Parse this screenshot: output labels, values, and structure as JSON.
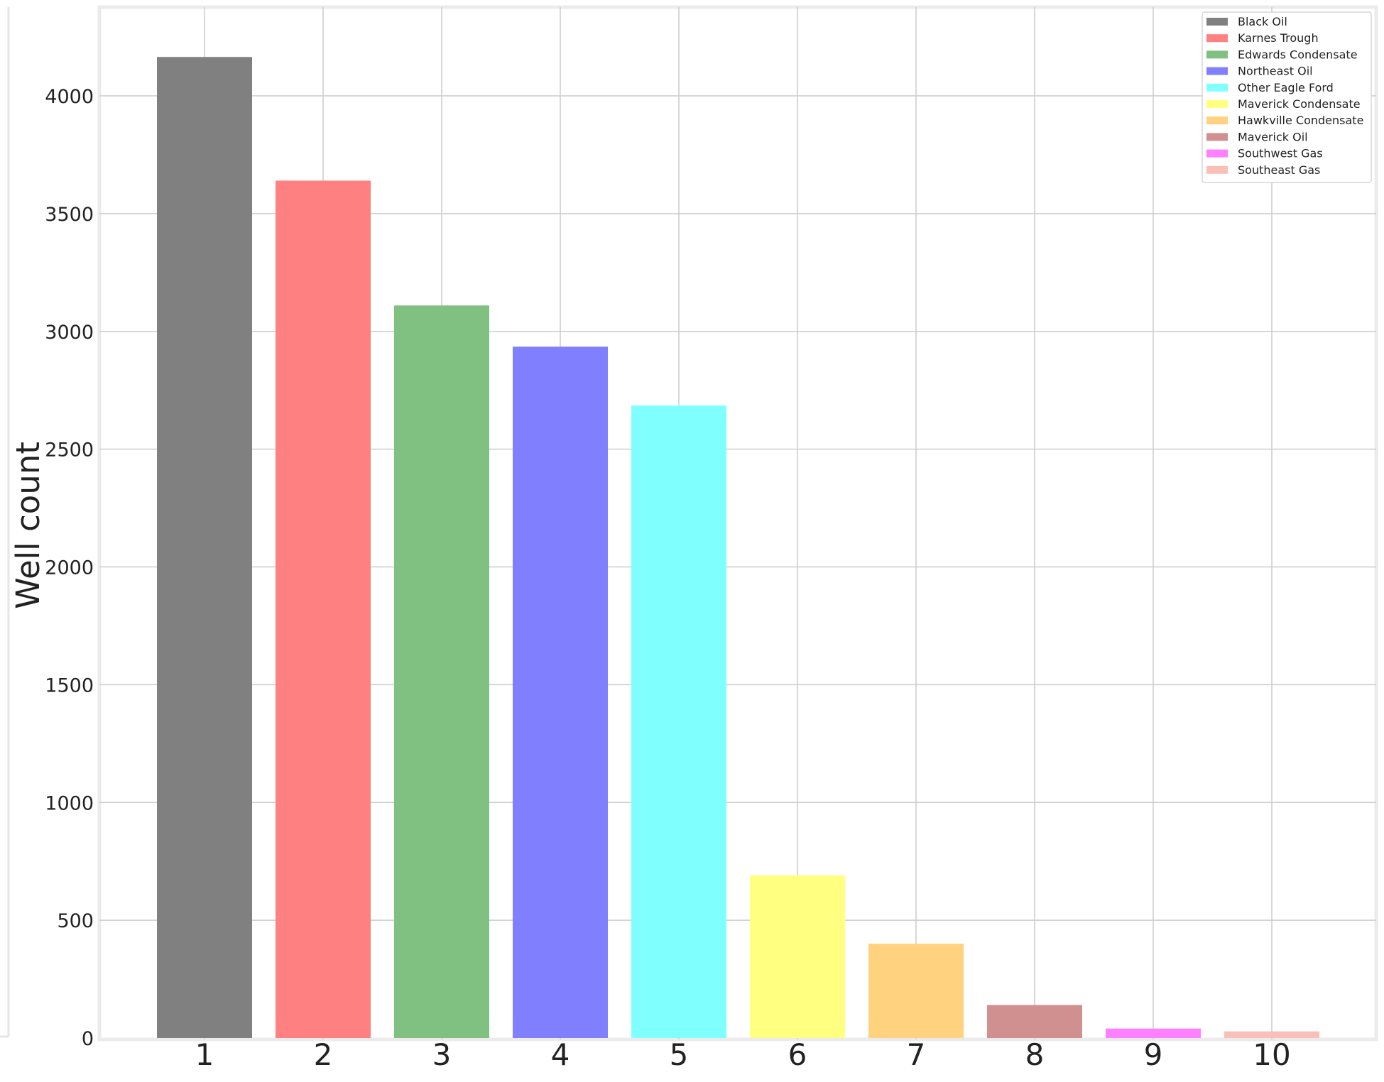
{
  "chart_data": {
    "type": "bar",
    "title": "",
    "xlabel": "",
    "ylabel": "Well count",
    "ylim": [
      0,
      4400
    ],
    "yticks": [
      0,
      500,
      1000,
      1500,
      2000,
      2500,
      3000,
      3500,
      4000
    ],
    "grid": true,
    "legend_position": "top-right",
    "categories": [
      "1",
      "2",
      "3",
      "4",
      "5",
      "6",
      "7",
      "8",
      "9",
      "10"
    ],
    "series": [
      {
        "name": "Black Oil",
        "category": "1",
        "value": 4165,
        "color": "#808080"
      },
      {
        "name": "Karnes Trough",
        "category": "2",
        "value": 3640,
        "color": "#ff8080"
      },
      {
        "name": "Edwards Condensate",
        "category": "3",
        "value": 3110,
        "color": "#80c080"
      },
      {
        "name": "Northeast Oil",
        "category": "4",
        "value": 2935,
        "color": "#8080ff"
      },
      {
        "name": "Other Eagle Ford",
        "category": "5",
        "value": 2685,
        "color": "#80ffff"
      },
      {
        "name": "Maverick Condensate",
        "category": "6",
        "value": 690,
        "color": "#ffff80"
      },
      {
        "name": "Hawkville Condensate",
        "category": "7",
        "value": 400,
        "color": "#ffd280"
      },
      {
        "name": "Maverick Oil",
        "category": "8",
        "value": 140,
        "color": "#d09090"
      },
      {
        "name": "Southwest Gas",
        "category": "9",
        "value": 40,
        "color": "#ff80ff"
      },
      {
        "name": "Southeast Gas",
        "category": "10",
        "value": 28,
        "color": "#f9c0b8"
      }
    ]
  }
}
